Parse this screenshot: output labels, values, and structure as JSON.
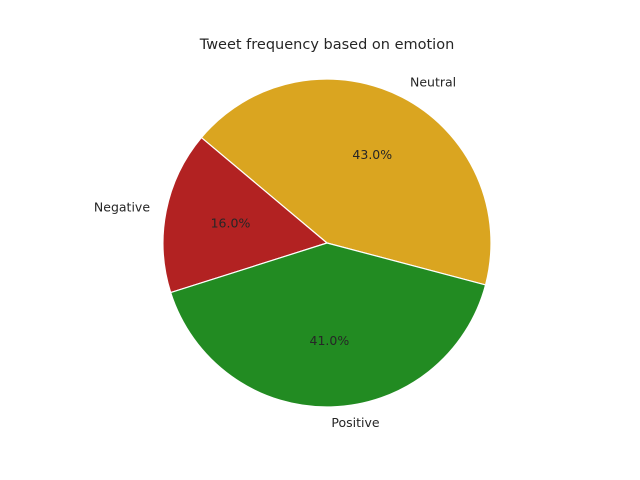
{
  "chart_data": {
    "type": "pie",
    "title": "Tweet frequency based on emotion",
    "slices": [
      {
        "label": "Neutral",
        "value": 43.0,
        "pct_label": "43.0%",
        "color": "#DAA520"
      },
      {
        "label": "Negative",
        "value": 16.0,
        "pct_label": "16.0%",
        "color": "#B22222"
      },
      {
        "label": "Positive",
        "value": 41.0,
        "pct_label": "41.0%",
        "color": "#228B22"
      }
    ],
    "legend": "none"
  }
}
